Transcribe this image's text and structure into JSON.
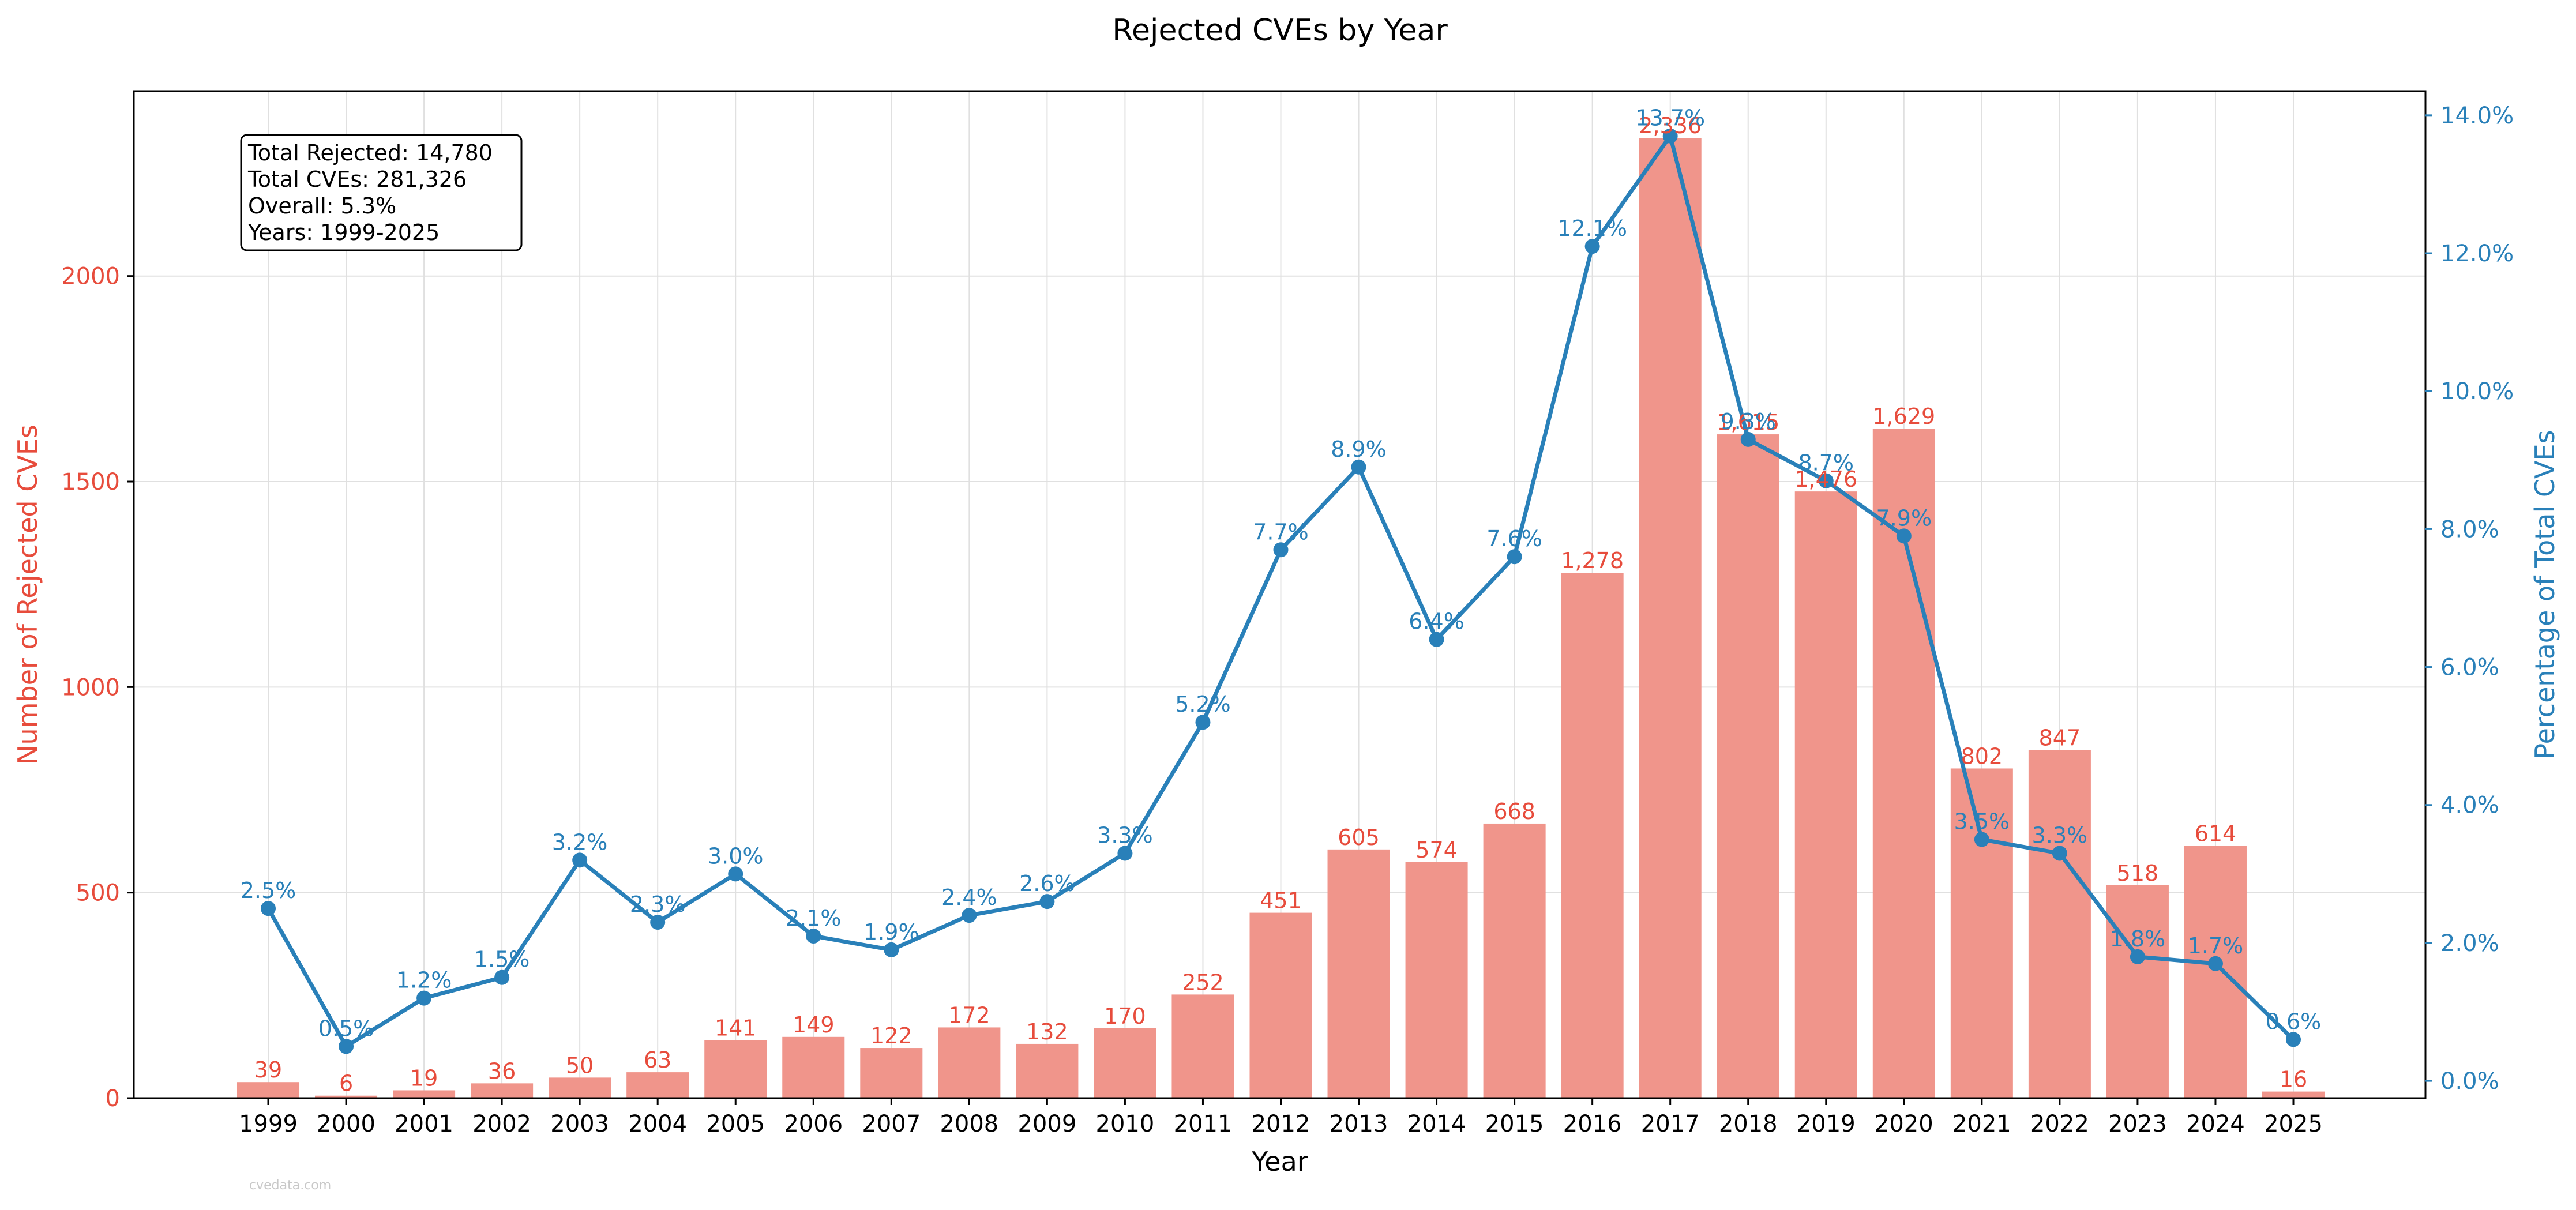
{
  "chart_data": {
    "type": "bar",
    "title": "Rejected CVEs by Year",
    "xlabel": "Year",
    "ylabel": "Number of Rejected CVEs",
    "y2label": "Percentage of Total CVEs",
    "categories": [
      "1999",
      "2000",
      "2001",
      "2002",
      "2003",
      "2004",
      "2005",
      "2006",
      "2007",
      "2008",
      "2009",
      "2010",
      "2011",
      "2012",
      "2013",
      "2014",
      "2015",
      "2016",
      "2017",
      "2018",
      "2019",
      "2020",
      "2021",
      "2022",
      "2023",
      "2024",
      "2025"
    ],
    "series": [
      {
        "type": "bar",
        "axis": "left",
        "values": [
          39,
          6,
          19,
          36,
          50,
          63,
          141,
          149,
          122,
          172,
          132,
          170,
          252,
          451,
          605,
          574,
          668,
          1278,
          2336,
          1615,
          1476,
          1629,
          802,
          847,
          518,
          614,
          16
        ],
        "labels": [
          "39",
          "6",
          "19",
          "36",
          "50",
          "63",
          "141",
          "149",
          "122",
          "172",
          "132",
          "170",
          "252",
          "451",
          "605",
          "574",
          "668",
          "1,278",
          "2,336",
          "1,615",
          "1,476",
          "1,629",
          "802",
          "847",
          "518",
          "614",
          "16"
        ]
      },
      {
        "type": "line",
        "axis": "right",
        "values": [
          2.5,
          0.5,
          1.2,
          1.5,
          3.2,
          2.3,
          3.0,
          2.1,
          1.9,
          2.4,
          2.6,
          3.3,
          5.2,
          7.7,
          8.9,
          6.4,
          7.6,
          12.1,
          13.7,
          9.3,
          8.7,
          7.9,
          3.5,
          3.3,
          1.8,
          1.7,
          0.6
        ],
        "labels": [
          "2.5%",
          "0.5%",
          "1.2%",
          "1.5%",
          "3.2%",
          "2.3%",
          "3.0%",
          "2.1%",
          "1.9%",
          "2.4%",
          "2.6%",
          "3.3%",
          "5.2%",
          "7.7%",
          "8.9%",
          "6.4%",
          "7.6%",
          "12.1%",
          "13.7%",
          "9.3%",
          "8.7%",
          "7.9%",
          "3.5%",
          "3.3%",
          "1.8%",
          "1.7%",
          "0.6%"
        ]
      }
    ],
    "ylim": [
      0,
      2450
    ],
    "y_ticks": [
      0,
      500,
      1000,
      1500,
      2000
    ],
    "y2lim": [
      -0.25,
      14.35
    ],
    "y2_ticks": [
      0,
      2,
      4,
      6,
      8,
      10,
      12,
      14
    ],
    "y2_tick_labels": [
      "0.0%",
      "2.0%",
      "4.0%",
      "6.0%",
      "8.0%",
      "10.0%",
      "12.0%",
      "14.0%"
    ],
    "grid": true,
    "annotation_box": [
      "Total Rejected: 14,780",
      "Total CVEs: 281,326",
      "Overall: 5.3%",
      "Years: 1999-2025"
    ],
    "watermark": "cvedata.com",
    "colors": {
      "bar": "#f0958b",
      "bar_label": "#e74c3c",
      "line": "#2980b9",
      "left_axis": "#e74c3c",
      "right_axis": "#2980b9",
      "grid": "#e0e0e0",
      "text": "#000000"
    }
  }
}
